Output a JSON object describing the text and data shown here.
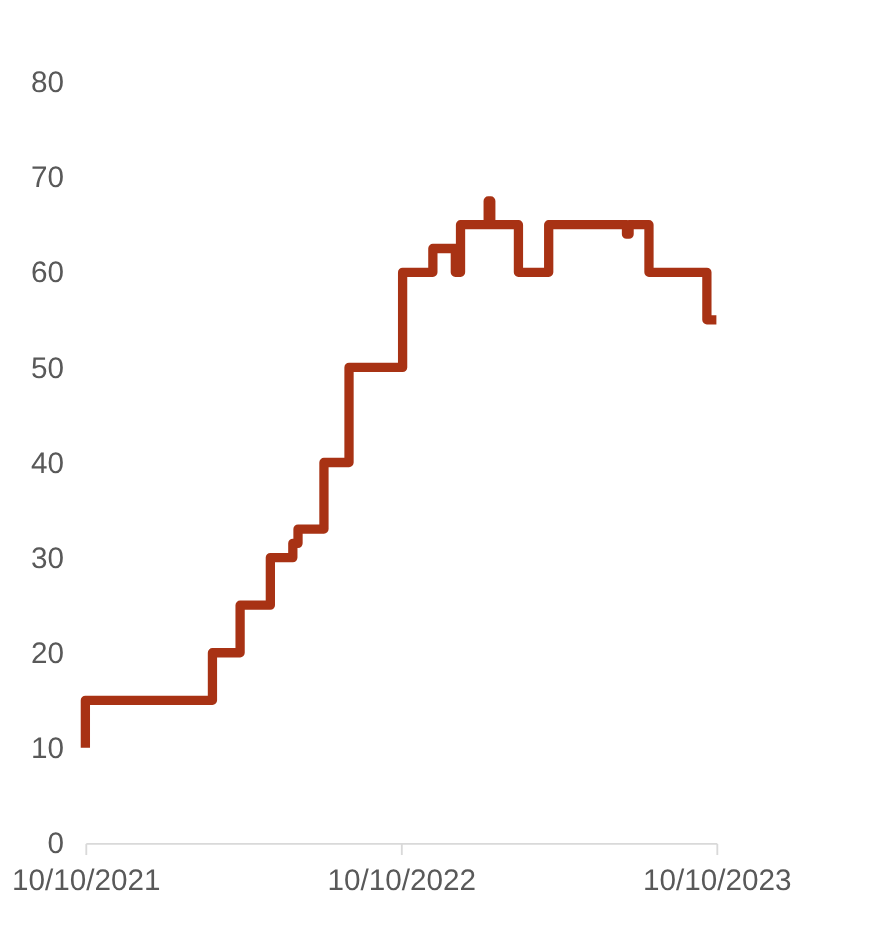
{
  "chart_data": {
    "type": "step",
    "x": [
      "2021-10-10",
      "2021-10-10",
      "2022-03-06",
      "2022-04-07",
      "2022-05-12",
      "2022-06-07",
      "2022-06-13",
      "2022-07-13",
      "2022-08-11",
      "2022-10-12",
      "2022-11-16",
      "2022-12-12",
      "2022-12-18",
      "2023-01-19",
      "2023-01-22",
      "2023-02-23",
      "2023-03-30",
      "2023-06-28",
      "2023-07-01",
      "2023-07-24",
      "2023-09-29",
      "2023-10-10"
    ],
    "series": [
      {
        "color": "#a83214",
        "values": [
          10,
          15,
          20,
          25,
          30,
          31.5,
          33,
          40,
          50,
          60,
          62.5,
          60,
          65,
          67.5,
          65,
          60,
          65,
          64,
          65,
          60,
          55,
          55
        ]
      }
    ],
    "xlim": [
      "2021-10-10",
      "2023-10-10"
    ],
    "xticks": [
      {
        "value": "2021-10-10",
        "label": "10/10/2021"
      },
      {
        "value": "2022-10-10",
        "label": "10/10/2022"
      },
      {
        "value": "2023-10-10",
        "label": "10/10/2023"
      }
    ],
    "ylim": [
      0,
      80
    ],
    "yticks": [
      0,
      10,
      20,
      30,
      40,
      50,
      60,
      70,
      80
    ],
    "grid": false,
    "marker": "none",
    "line_style": "solid"
  }
}
